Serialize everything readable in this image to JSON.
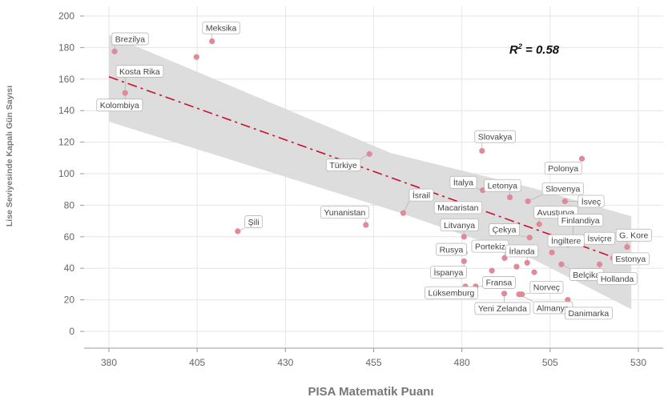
{
  "chart_data": {
    "type": "scatter",
    "title": "",
    "xlabel": "PISA Matematik Puanı",
    "ylabel": "Lise Seviyesinde Kapalı Gün Sayısı",
    "xlim": [
      372,
      532
    ],
    "ylim": [
      -10,
      205
    ],
    "xticks": [
      380,
      405,
      430,
      455,
      480,
      505,
      530
    ],
    "yticks": [
      0,
      20,
      40,
      60,
      80,
      100,
      120,
      140,
      160,
      180,
      200
    ],
    "annotation": "R² = 0.58",
    "colors": {
      "point": "#e08a98",
      "trend": "#c8102e",
      "band": "#d9d9d9",
      "grid": "#e6e6e6"
    },
    "trend": {
      "x": [
        380,
        528
      ],
      "y": [
        161.5,
        43
      ]
    },
    "band": {
      "x": [
        380,
        460,
        500,
        528
      ],
      "upper": [
        188,
        113,
        91,
        73
      ],
      "lower": [
        133,
        77,
        46,
        14
      ]
    },
    "points": [
      {
        "country": "Brezilya",
        "x": 381.6,
        "y": 177.5
      },
      {
        "country": "",
        "x": 404.8,
        "y": 174
      },
      {
        "country": "Meksika",
        "x": 409.2,
        "y": 184
      },
      {
        "country": "Kosta Rika",
        "x": 384.6,
        "y": 151.2
      },
      {
        "country": "Kolombiya",
        "x": 384.6,
        "y": 151.2
      },
      {
        "country": "Şili",
        "x": 416.5,
        "y": 63.5
      },
      {
        "country": "Türkiye",
        "x": 453.8,
        "y": 112.5
      },
      {
        "country": "Yunanistan",
        "x": 452.8,
        "y": 67.5
      },
      {
        "country": "İsrail",
        "x": 463.4,
        "y": 75
      },
      {
        "country": "Slovakya",
        "x": 485.7,
        "y": 114.5
      },
      {
        "country": "Polonya",
        "x": 514.0,
        "y": 109.5
      },
      {
        "country": "İtalya",
        "x": 485.9,
        "y": 89.5
      },
      {
        "country": "Letonya",
        "x": 493.6,
        "y": 85
      },
      {
        "country": "Slovenya",
        "x": 498.7,
        "y": 82.5
      },
      {
        "country": "İsveç",
        "x": 509.2,
        "y": 82.5
      },
      {
        "country": "Macaristan",
        "x": 481.2,
        "y": 79
      },
      {
        "country": "Avusturya",
        "x": 501.9,
        "y": 68
      },
      {
        "country": "Litvanya",
        "x": 480.6,
        "y": 60
      },
      {
        "country": "Çekya",
        "x": 499.2,
        "y": 59.5
      },
      {
        "country": "Finlandiya",
        "x": 511.5,
        "y": 58
      },
      {
        "country": "İngiltere",
        "x": 510.0,
        "y": 55
      },
      {
        "country": "İsviçre",
        "x": 513.0,
        "y": 56
      },
      {
        "country": "G. Kore",
        "x": 526.8,
        "y": 53.5
      },
      {
        "country": "Estonya",
        "x": 522.8,
        "y": 46.5
      },
      {
        "country": "Rusya",
        "x": 480.8,
        "y": 50
      },
      {
        "country": "Portekiz",
        "x": 492.1,
        "y": 46.5
      },
      {
        "country": "İrlanda",
        "x": 498.5,
        "y": 43.5
      },
      {
        "country": "Belçika",
        "x": 508.2,
        "y": 42.5
      },
      {
        "country": "Hollanda",
        "x": 519.0,
        "y": 42.5
      },
      {
        "country": "İspanya",
        "x": 480.6,
        "y": 44.5
      },
      {
        "country": "",
        "x": 497.5,
        "y": 50
      },
      {
        "country": "",
        "x": 495.5,
        "y": 41
      },
      {
        "country": "",
        "x": 500.5,
        "y": 37.5
      },
      {
        "country": "",
        "x": 488.5,
        "y": 38.5
      },
      {
        "country": "",
        "x": 505.5,
        "y": 50
      },
      {
        "country": "Fransa",
        "x": 483.9,
        "y": 28.5
      },
      {
        "country": "Norveç",
        "x": 497.0,
        "y": 23.5
      },
      {
        "country": "Lüksemburg",
        "x": 481.0,
        "y": 28.5
      },
      {
        "country": "Yeni Zelanda",
        "x": 492.0,
        "y": 24
      },
      {
        "country": "Almanya",
        "x": 496.2,
        "y": 23.5
      },
      {
        "country": "Danimarka",
        "x": 510.0,
        "y": 20
      }
    ],
    "labels": [
      {
        "text": "Brezilya",
        "x": 386.0,
        "y": 185.5
      },
      {
        "text": "Meksika",
        "x": 411.8,
        "y": 192.5
      },
      {
        "text": "Kosta Rika",
        "x": 388.7,
        "y": 165
      },
      {
        "text": "Kolombiya",
        "x": 383.0,
        "y": 143.5
      },
      {
        "text": "Şili",
        "x": 421.0,
        "y": 69.5
      },
      {
        "text": "Türkiye",
        "x": 446.4,
        "y": 105.5
      },
      {
        "text": "Yunanistan",
        "x": 446.8,
        "y": 75.5
      },
      {
        "text": "İsrail",
        "x": 468.5,
        "y": 86.5
      },
      {
        "text": "Slovakya",
        "x": 489.4,
        "y": 123.5
      },
      {
        "text": "Polonya",
        "x": 508.7,
        "y": 103.5
      },
      {
        "text": "İtalya",
        "x": 480.4,
        "y": 94.5
      },
      {
        "text": "Letonya",
        "x": 491.5,
        "y": 92.5
      },
      {
        "text": "Slovenya",
        "x": 508.6,
        "y": 90.5
      },
      {
        "text": "İsveç",
        "x": 516.6,
        "y": 82.5
      },
      {
        "text": "Macaristan",
        "x": 478.9,
        "y": 78.5
      },
      {
        "text": "Avusturya",
        "x": 506.6,
        "y": 75.5
      },
      {
        "text": "Litvanya",
        "x": 479.3,
        "y": 67.5
      },
      {
        "text": "Çekya",
        "x": 492.0,
        "y": 64.5
      },
      {
        "text": "Finlandiya",
        "x": 513.6,
        "y": 70.5
      },
      {
        "text": "İngiltere",
        "x": 509.5,
        "y": 57.5
      },
      {
        "text": "İsviçre",
        "x": 519.0,
        "y": 59
      },
      {
        "text": "G. Kore",
        "x": 528.7,
        "y": 61
      },
      {
        "text": "Estonya",
        "x": 527.8,
        "y": 46
      },
      {
        "text": "Rusya",
        "x": 477.0,
        "y": 52
      },
      {
        "text": "Portekiz",
        "x": 488.0,
        "y": 54
      },
      {
        "text": "İrlanda",
        "x": 497.0,
        "y": 51
      },
      {
        "text": "Belçika",
        "x": 515.3,
        "y": 36
      },
      {
        "text": "Hollanda",
        "x": 524.0,
        "y": 33.5
      },
      {
        "text": "İspanya",
        "x": 476.2,
        "y": 37.5
      },
      {
        "text": "Fransa",
        "x": 490.5,
        "y": 31
      },
      {
        "text": "Norveç",
        "x": 504.0,
        "y": 28
      },
      {
        "text": "Lüksemburg",
        "x": 477.0,
        "y": 24.5
      },
      {
        "text": "Yeni Zelanda",
        "x": 491.5,
        "y": 14.5
      },
      {
        "text": "Almanya",
        "x": 505.8,
        "y": 15
      },
      {
        "text": "Danimarka",
        "x": 515.9,
        "y": 11.5
      }
    ]
  }
}
